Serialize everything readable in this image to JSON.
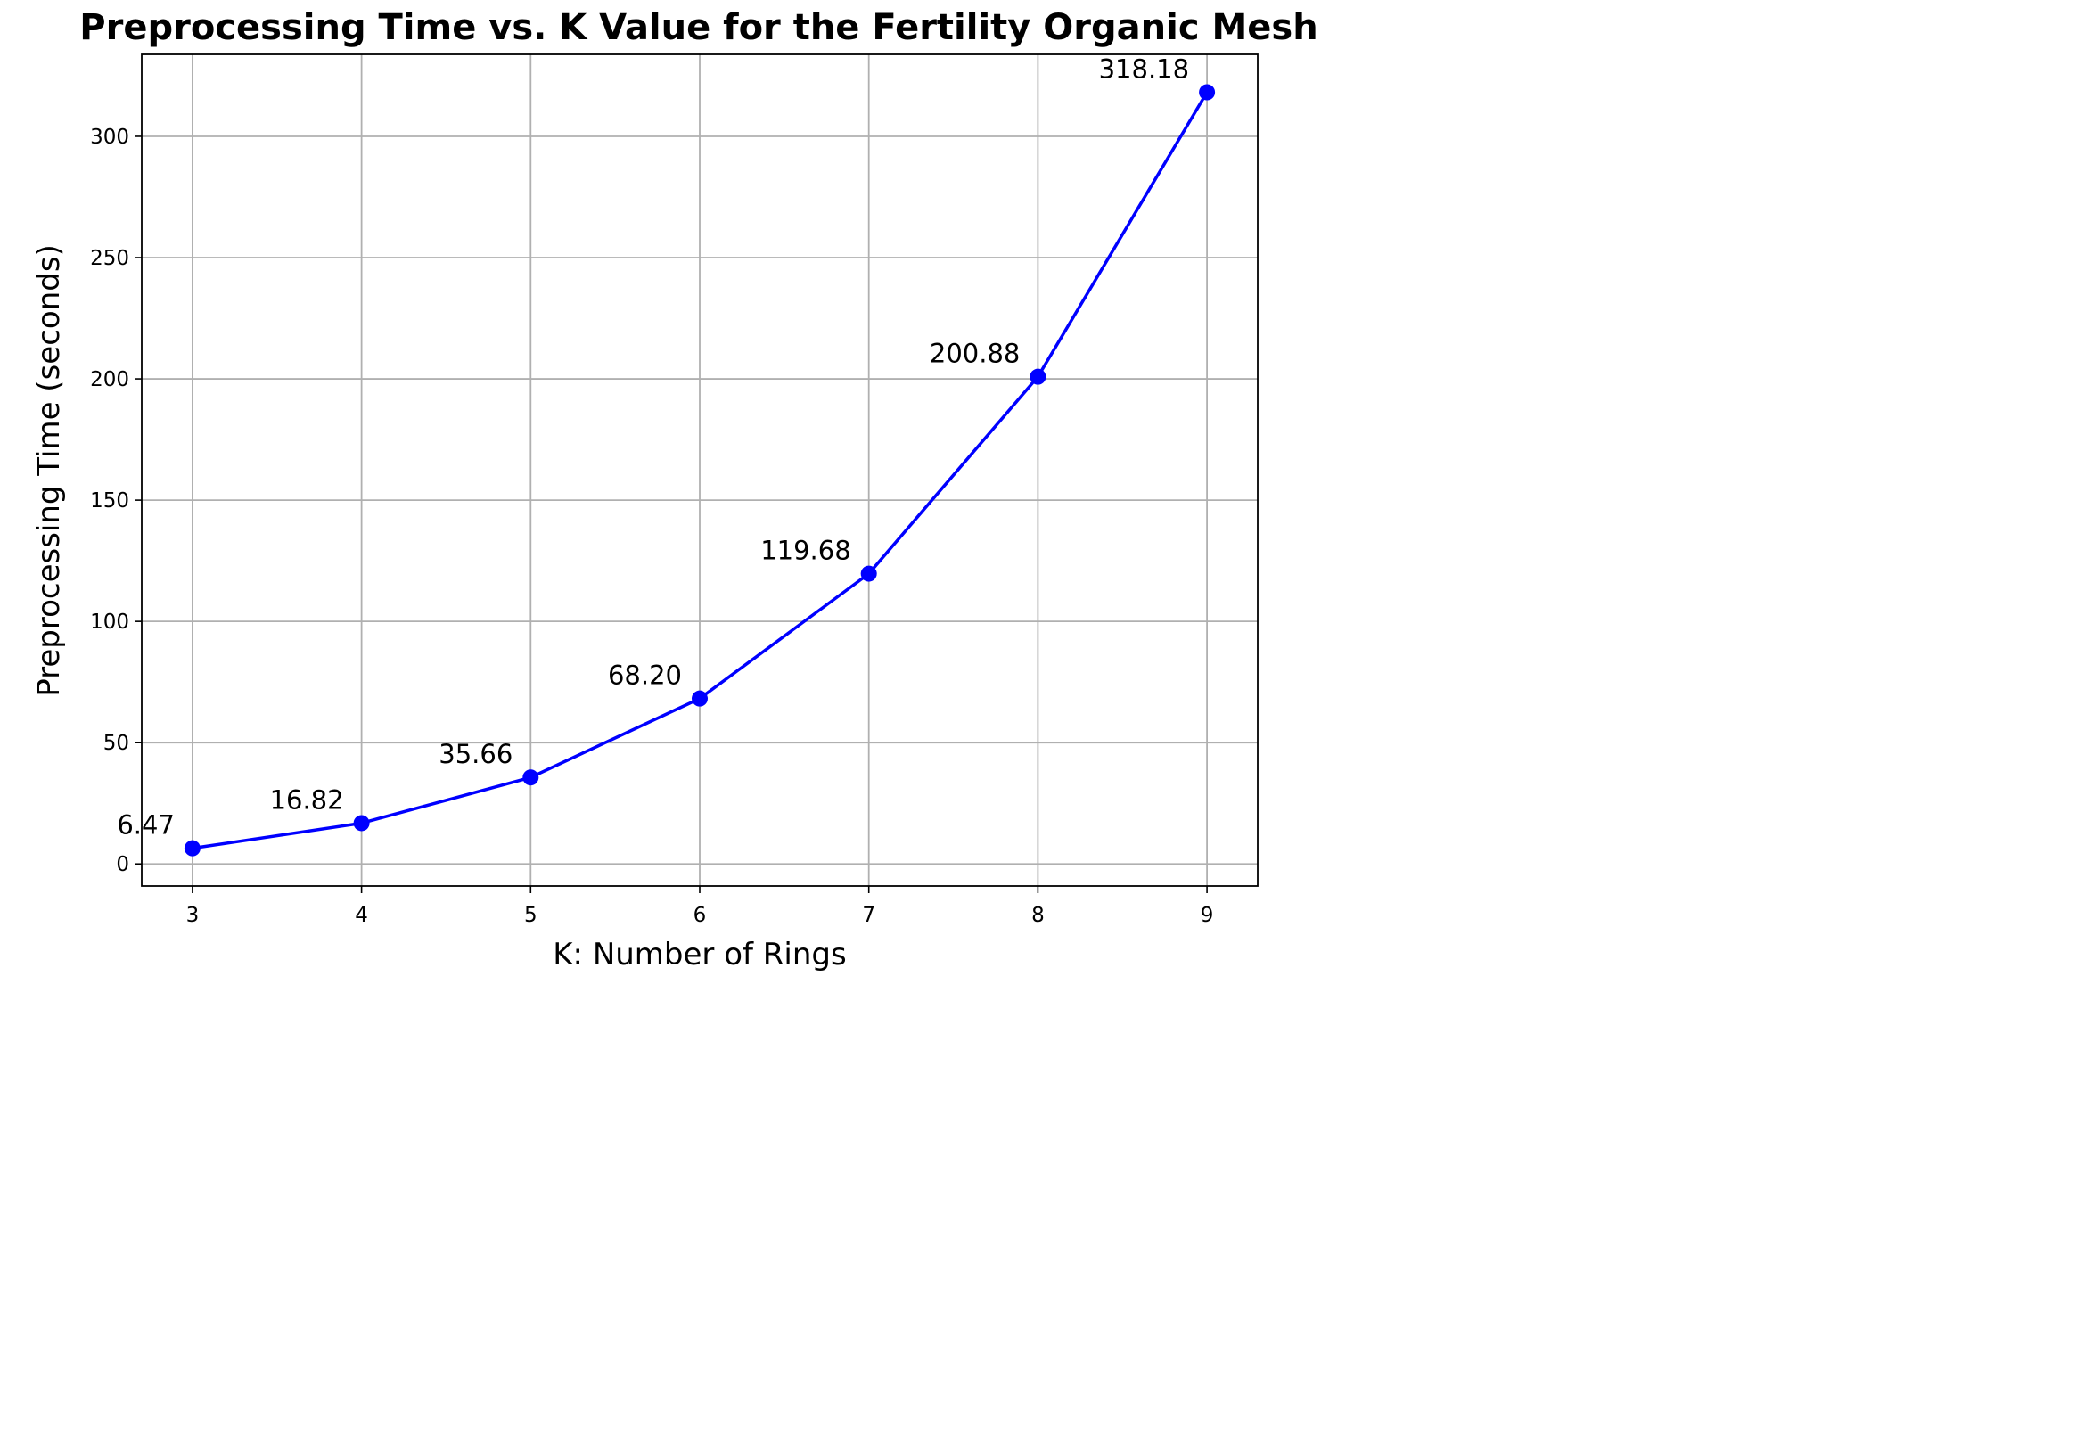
{
  "chart_data": {
    "type": "line",
    "title": "Preprocessing Time vs. K Value for the Fertility Organic Mesh",
    "xlabel": "K: Number of Rings",
    "ylabel": "Preprocessing Time (seconds)",
    "x": [
      3,
      4,
      5,
      6,
      7,
      8,
      9
    ],
    "x_tick_labels": [
      "3",
      "4",
      "5",
      "6",
      "7",
      "8",
      "9"
    ],
    "y_ticks": [
      0,
      50,
      100,
      150,
      200,
      250,
      300
    ],
    "y_tick_labels": [
      "0",
      "50",
      "100",
      "150",
      "200",
      "250",
      "300"
    ],
    "xlim": [
      2.7,
      9.3
    ],
    "ylim": [
      -9.1,
      333.8
    ],
    "grid": true,
    "series": [
      {
        "values": [
          6.47,
          16.82,
          35.66,
          68.2,
          119.68,
          200.88,
          318.18
        ],
        "labels": [
          "6.47",
          "16.82",
          "35.66",
          "68.20",
          "119.68",
          "200.88",
          "318.18"
        ],
        "color": "#0000ff",
        "marker": "circle"
      }
    ]
  }
}
